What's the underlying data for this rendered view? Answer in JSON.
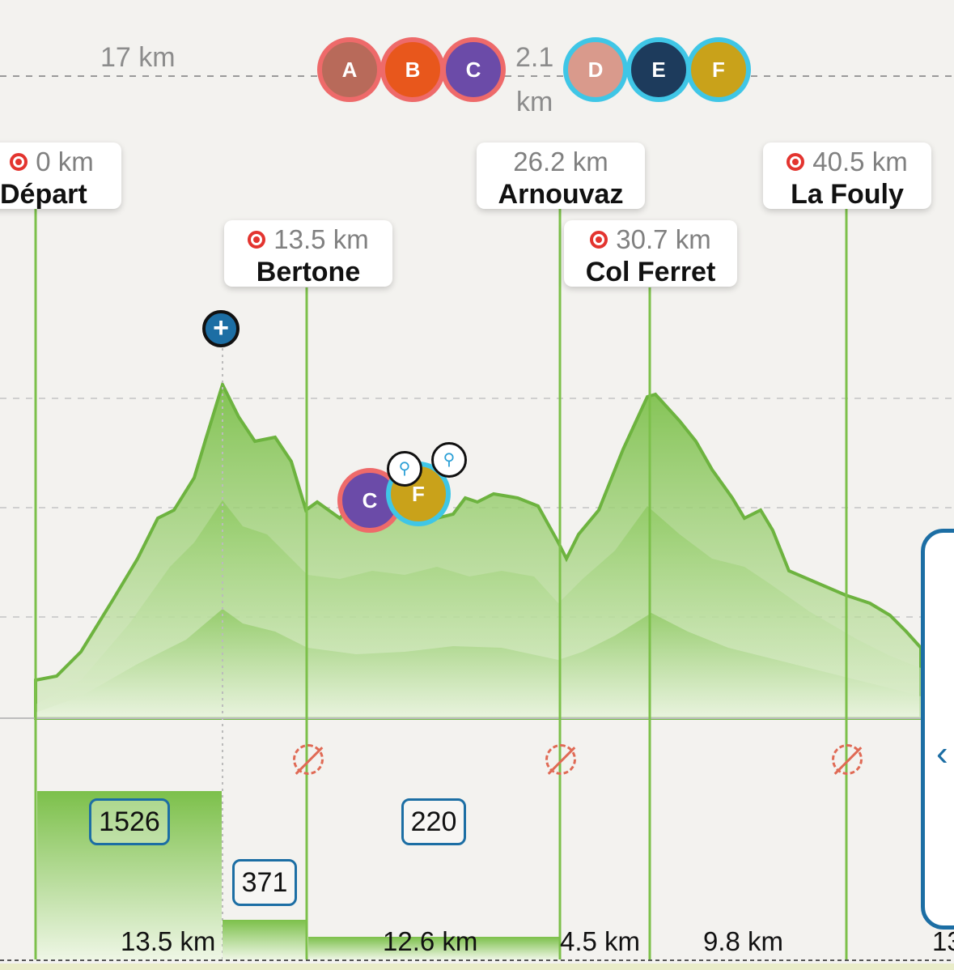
{
  "gaps": {
    "left_gap": "17 km",
    "mid_gap_value": "2.1",
    "mid_gap_unit": "km"
  },
  "runners_group_a": [
    {
      "name": "runner-1",
      "initials": "A",
      "color": "#b86a5a"
    },
    {
      "name": "runner-2",
      "initials": "B",
      "color": "#e8571c"
    },
    {
      "name": "runner-3",
      "initials": "C",
      "color": "#6b4ba8"
    }
  ],
  "runners_group_b": [
    {
      "name": "runner-4",
      "initials": "D",
      "color": "#d99a8c"
    },
    {
      "name": "runner-5",
      "initials": "E",
      "color": "#1d3b5c"
    },
    {
      "name": "runner-6",
      "initials": "F",
      "color": "#c9a21a"
    }
  ],
  "checkpoints": [
    {
      "km": "0 km",
      "name": "Départ",
      "icon": "target"
    },
    {
      "km": "13.5 km",
      "name": "Bertone",
      "icon": "target"
    },
    {
      "km": "26.2 km",
      "name": "Arnouvaz",
      "icon": ""
    },
    {
      "km": "30.7 km",
      "name": "Col Ferret",
      "icon": "target"
    },
    {
      "km": "40.5 km",
      "name": "La Fouly",
      "icon": "target"
    }
  ],
  "segments": {
    "elevation_badges": [
      "1526",
      "371",
      "220"
    ],
    "distances": [
      "13.5 km",
      "12.6 km",
      "4.5 km",
      "9.8 km",
      "13"
    ]
  },
  "colors": {
    "profile_green": "#6db33f",
    "checkpoint_line": "#7cc04a",
    "badge_border": "#1c6ea4",
    "red_ring": "#ee6a6a",
    "blue_ring": "#3fc6e6",
    "no_food_icon": "#e06a55"
  },
  "icons": {
    "add": "plus-icon",
    "pin": "runner-pin-icon",
    "no_food": "no-refreshment-icon",
    "panel_toggle": "chevron-left-icon"
  },
  "controls": {
    "add_label": "+",
    "panel_chevron": "‹"
  }
}
